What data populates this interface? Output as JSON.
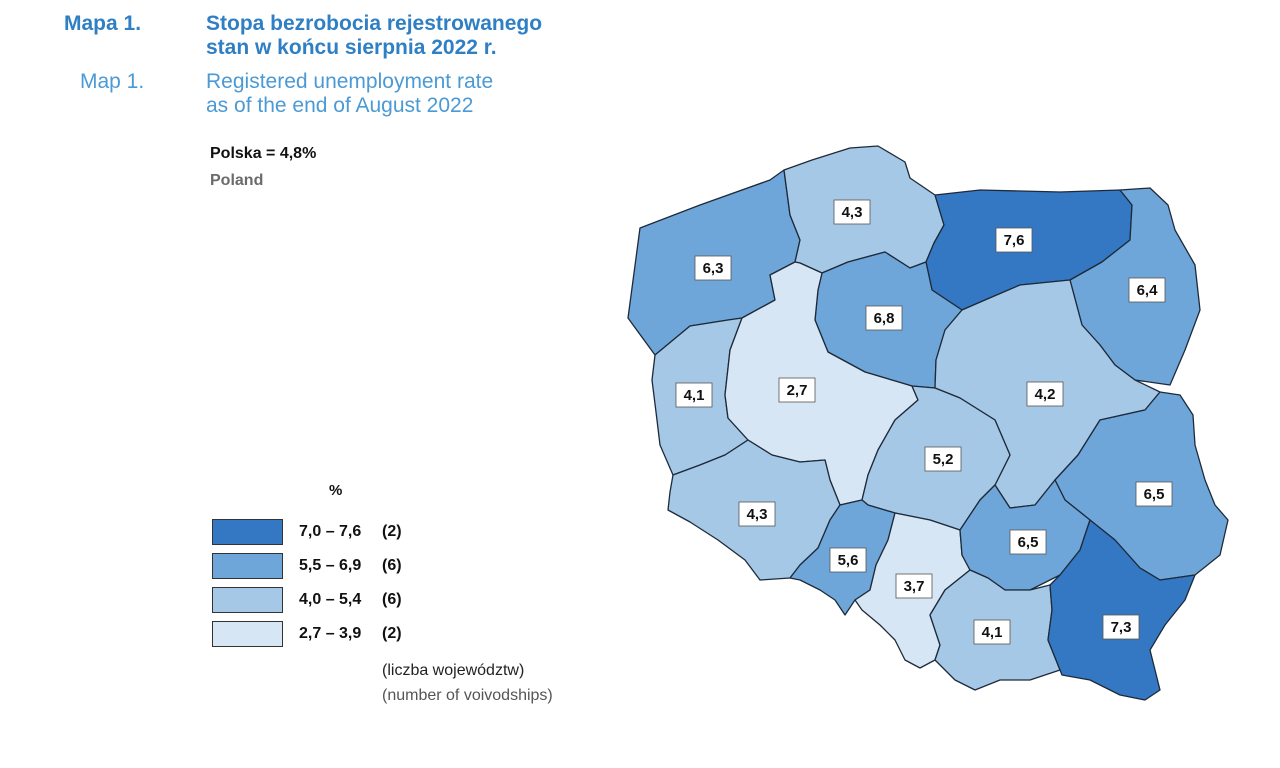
{
  "header": {
    "map_number_pl": "Mapa 1.",
    "title_pl_line1": "Stopa bezrobocia rejestrowanego",
    "title_pl_line2": "stan w końcu sierpnia 2022 r.",
    "map_number_en": "Map 1.",
    "title_en_line1": "Registered unemployment rate",
    "title_en_line2": "as of the end of August 2022"
  },
  "total": {
    "label_pl": "Polska = 4,8%",
    "label_en": "Poland"
  },
  "legend": {
    "unit": "%",
    "classes": [
      {
        "range": "7,0 – 7,6",
        "count": "(2)",
        "color": "#3478c3"
      },
      {
        "range": "5,5 – 6,9",
        "count": "(6)",
        "color": "#6fa6da"
      },
      {
        "range": "4,0 – 5,4",
        "count": "(6)",
        "color": "#a5c8e6"
      },
      {
        "range": "2,7 – 3,9",
        "count": "(2)",
        "color": "#d6e6f4"
      }
    ],
    "note_pl": "(liczba województw)",
    "note_en": "(number of voivodships)"
  },
  "map": {
    "regions": [
      {
        "id": "zachodniopomorskie",
        "value": "6,3",
        "color": "#6fa6da"
      },
      {
        "id": "pomorskie",
        "value": "4,3",
        "color": "#a5c8e6"
      },
      {
        "id": "warminsko-mazurskie",
        "value": "7,6",
        "color": "#3478c3"
      },
      {
        "id": "podlaskie",
        "value": "6,4",
        "color": "#6fa6da"
      },
      {
        "id": "kujawsko-pomorskie",
        "value": "6,8",
        "color": "#6fa6da"
      },
      {
        "id": "lubuskie",
        "value": "4,1",
        "color": "#a5c8e6"
      },
      {
        "id": "wielkopolskie",
        "value": "2,7",
        "color": "#d6e6f4"
      },
      {
        "id": "mazowieckie",
        "value": "4,2",
        "color": "#a5c8e6"
      },
      {
        "id": "lodzkie",
        "value": "5,2",
        "color": "#a5c8e6"
      },
      {
        "id": "lubelskie",
        "value": "6,5",
        "color": "#6fa6da"
      },
      {
        "id": "dolnoslaskie",
        "value": "4,3",
        "color": "#a5c8e6"
      },
      {
        "id": "opolskie",
        "value": "5,6",
        "color": "#6fa6da"
      },
      {
        "id": "slaskie",
        "value": "3,7",
        "color": "#d6e6f4"
      },
      {
        "id": "swietokrzyskie",
        "value": "6,5",
        "color": "#6fa6da"
      },
      {
        "id": "malopolskie",
        "value": "4,1",
        "color": "#a5c8e6"
      },
      {
        "id": "podkarpackie",
        "value": "7,3",
        "color": "#3478c3"
      }
    ]
  }
}
